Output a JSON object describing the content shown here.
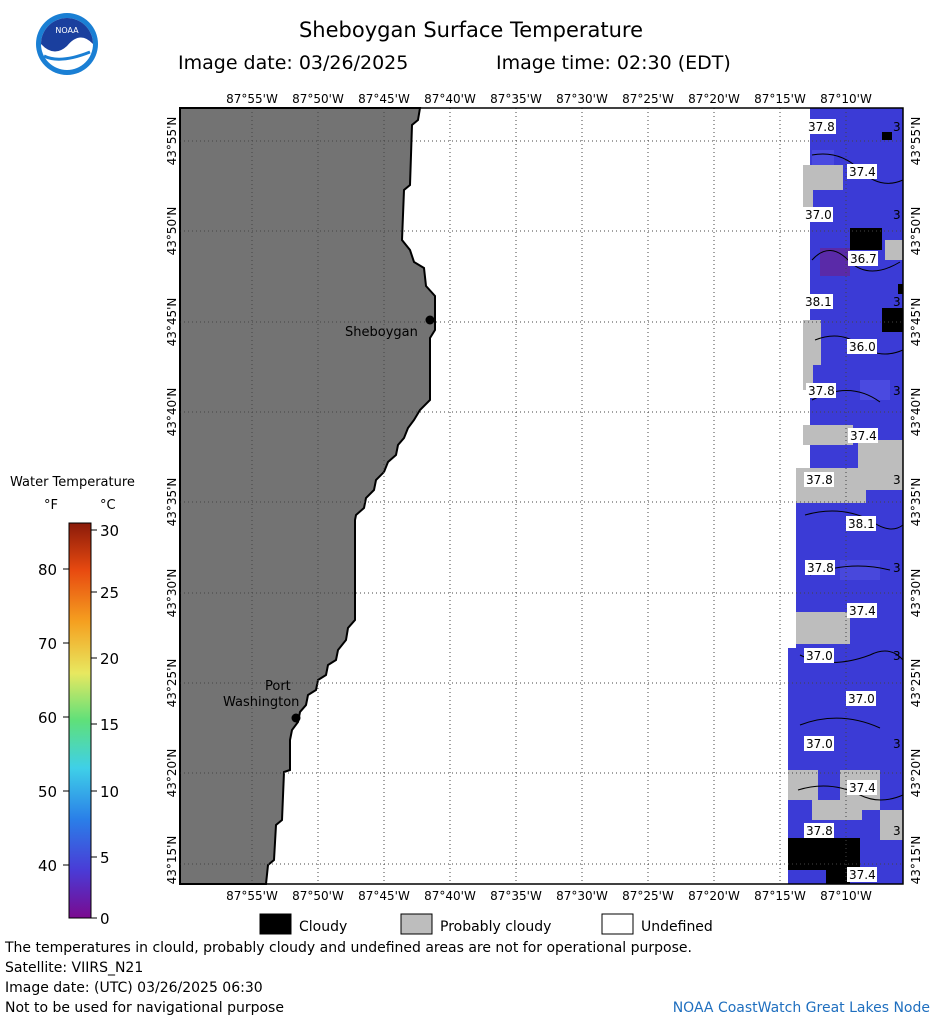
{
  "header": {
    "title": "Sheboygan Surface Temperature",
    "image_date": "Image date: 03/26/2025",
    "image_time": "Image time: 02:30 (EDT)"
  },
  "logo": {
    "text": "NOAA",
    "icon": "noaa-logo-icon"
  },
  "map": {
    "lon_labels": [
      "87°55'W",
      "87°50'W",
      "87°45'W",
      "87°40'W",
      "87°35'W",
      "87°30'W",
      "87°25'W",
      "87°20'W",
      "87°15'W",
      "87°10'W"
    ],
    "lon_labels_bottom": [
      "87°55'W",
      "87°50'W",
      "87°45'W",
      "87°40'W",
      "87°35'W",
      "87°30'W",
      "87°25'W",
      "87°20'W",
      "87°15'W",
      "87°10'W"
    ],
    "lat_labels": [
      "43°55'N",
      "43°50'N",
      "43°45'N",
      "43°40'N",
      "43°35'N",
      "43°30'N",
      "43°25'N",
      "43°20'N",
      "43°15'N"
    ],
    "cities": [
      {
        "name": "Sheboygan"
      },
      {
        "name": "Port",
        "name2": "Washington"
      }
    ],
    "contour_labels": [
      "37.8",
      "37.4",
      "37.0",
      "36.7",
      "38.1",
      "36.0",
      "37.8",
      "37.4",
      "37.8",
      "38.1",
      "37.8",
      "37.4",
      "37.0",
      "37.0",
      "37.0",
      "37.4",
      "37.8",
      "37.4"
    ],
    "edge_labels": [
      "3",
      "3",
      "3",
      "3",
      "3",
      "3",
      "3",
      "3",
      "3",
      "3",
      "3"
    ],
    "colors": {
      "land": "#737373",
      "water": "#3b3bd6",
      "cloudy": "#000000",
      "probably_cloudy": "#bdbdbd"
    }
  },
  "colorbar": {
    "title": "Water Temperature",
    "unit_f": "°F",
    "unit_c": "°C",
    "f_ticks": [
      "80",
      "70",
      "60",
      "50",
      "40"
    ],
    "c_ticks": [
      "30",
      "25",
      "20",
      "15",
      "10",
      "5",
      "0"
    ]
  },
  "legend": {
    "cloudy": "Cloudy",
    "probably_cloudy": "Probably cloudy",
    "undefined": "Undefined"
  },
  "footer": {
    "disclaimer": "The temperatures in clould, probably cloudy and undefined areas are not for operational purpose.",
    "satellite": "Satellite: VIIRS_N21",
    "utc_date": "Image date: (UTC) 03/26/2025  06:30",
    "navigation": "Not to be used for navigational purpose",
    "credit": "NOAA CoastWatch Great Lakes Node"
  }
}
